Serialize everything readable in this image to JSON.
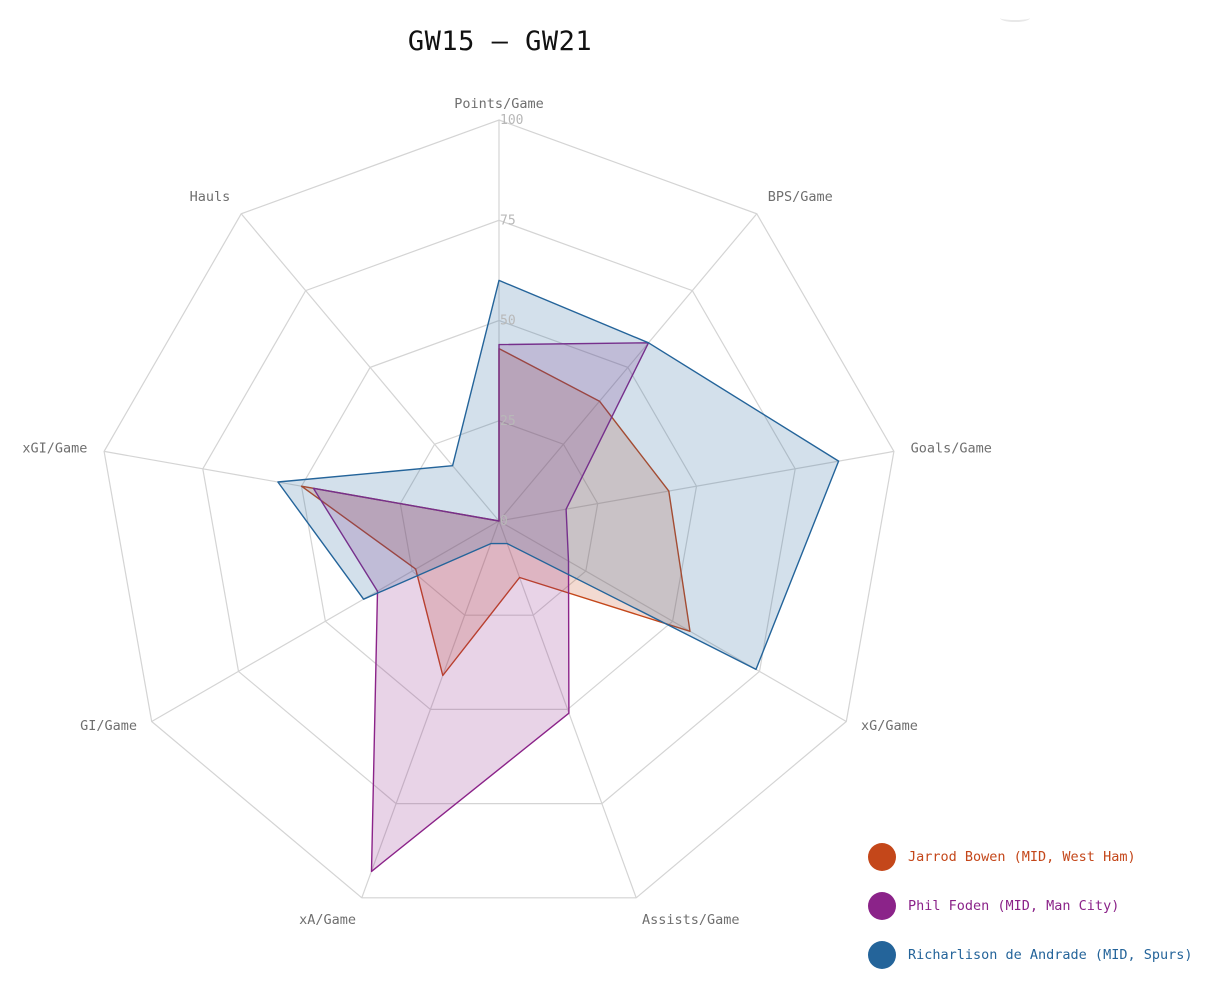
{
  "chart_data": {
    "type": "radar",
    "title": "GW15 – GW21",
    "axes": [
      "Points/Game",
      "BPS/Game",
      "Goals/Game",
      "xG/Game",
      "Assists/Game",
      "xA/Game",
      "GI/Game",
      "xGI/Game",
      "Hauls"
    ],
    "rlim": [
      0,
      100
    ],
    "ticks": [
      0,
      25,
      50,
      75,
      100
    ],
    "grid": true,
    "legend_position": "bottom-right",
    "series": [
      {
        "name": "Jarrod Bowen (MID, West Ham)",
        "color": "#c4471a",
        "values": [
          43,
          39,
          43,
          55,
          15,
          41,
          24,
          50,
          0
        ]
      },
      {
        "name": "Phil Foden (MID, Man City)",
        "color": "#8b2389",
        "values": [
          44,
          58,
          17,
          20,
          51,
          93,
          35,
          47,
          0
        ]
      },
      {
        "name": "Richarlison de Andrade (MID, Spurs)",
        "color": "#24649a",
        "values": [
          60,
          58,
          86,
          74,
          6,
          6,
          39,
          56,
          18
        ]
      }
    ]
  }
}
